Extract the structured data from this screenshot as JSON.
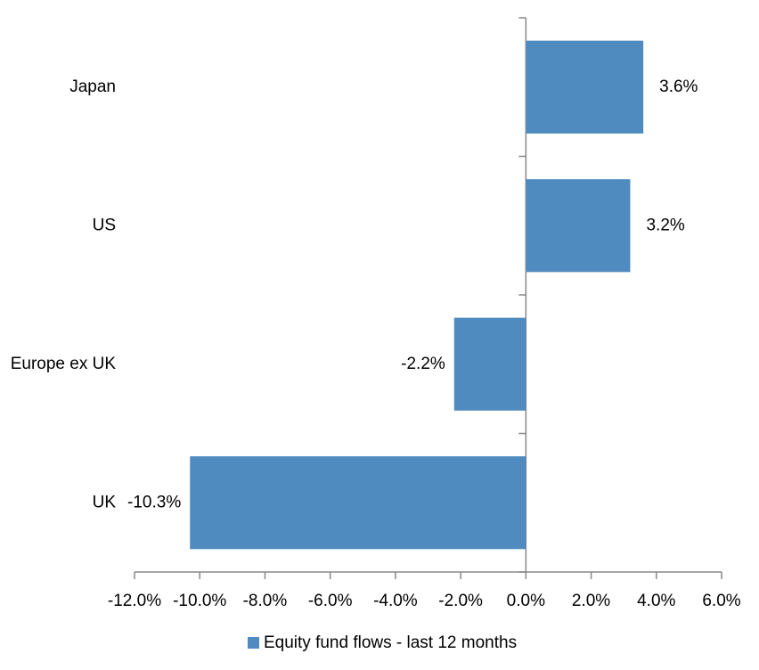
{
  "chart_data": {
    "type": "bar",
    "orientation": "horizontal",
    "categories": [
      "Japan",
      "US",
      "Europe ex UK",
      "UK"
    ],
    "series": [
      {
        "name": "Equity fund flows - last 12 months",
        "color": "#4f8bbf",
        "values": [
          3.6,
          3.2,
          -2.2,
          -10.3
        ],
        "value_labels": [
          "3.6%",
          "3.2%",
          "-2.2%",
          "-10.3%"
        ]
      }
    ],
    "xlim": [
      -12,
      6
    ],
    "xticks": [
      {
        "value": -12,
        "label": "-12.0%"
      },
      {
        "value": -10,
        "label": "-10.0%"
      },
      {
        "value": -8,
        "label": "-8.0%"
      },
      {
        "value": -6,
        "label": "-6.0%"
      },
      {
        "value": -4,
        "label": "-4.0%"
      },
      {
        "value": -2,
        "label": "-2.0%"
      },
      {
        "value": 0,
        "label": "0.0%"
      },
      {
        "value": 2,
        "label": "2.0%"
      },
      {
        "value": 4,
        "label": "4.0%"
      },
      {
        "value": 6,
        "label": "6.0%"
      }
    ],
    "grid": false,
    "legend": "bottom"
  }
}
